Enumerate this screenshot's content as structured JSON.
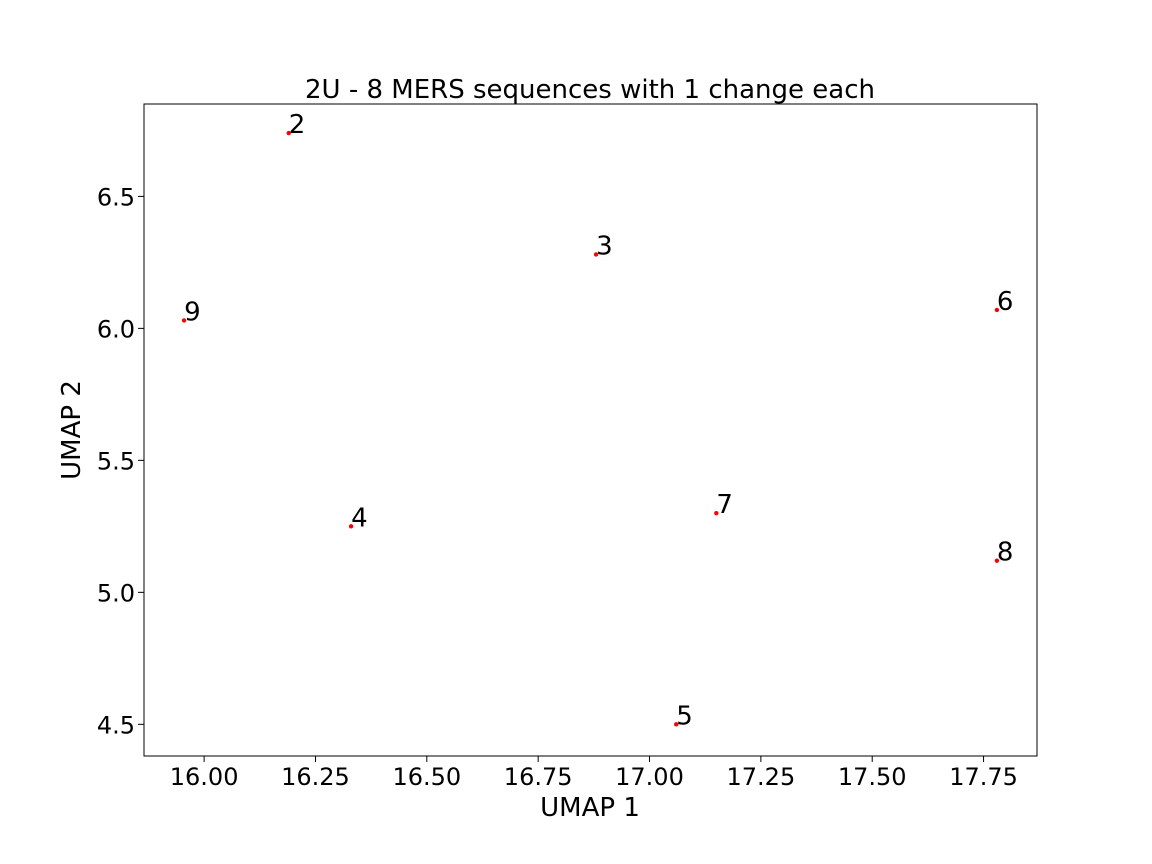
{
  "chart_data": {
    "type": "scatter",
    "title": "2U - 8 MERS sequences with 1 change each",
    "xlabel": "UMAP 1",
    "ylabel": "UMAP 2",
    "xlim": [
      15.865,
      17.87
    ],
    "ylim": [
      4.38,
      6.85
    ],
    "xticks": [
      16.0,
      16.25,
      16.5,
      16.75,
      17.0,
      17.25,
      17.5,
      17.75
    ],
    "xtick_labels": [
      "16.00",
      "16.25",
      "16.50",
      "16.75",
      "17.00",
      "17.25",
      "17.50",
      "17.75"
    ],
    "yticks": [
      4.5,
      5.0,
      5.5,
      6.0,
      6.5
    ],
    "ytick_labels": [
      "4.5",
      "5.0",
      "5.5",
      "6.0",
      "6.5"
    ],
    "grid": false,
    "point_color": "#ff0000",
    "points": [
      {
        "label": "2",
        "x": 16.19,
        "y": 6.74
      },
      {
        "label": "3",
        "x": 16.88,
        "y": 6.28
      },
      {
        "label": "4",
        "x": 16.33,
        "y": 5.25
      },
      {
        "label": "5",
        "x": 17.06,
        "y": 4.5
      },
      {
        "label": "6",
        "x": 17.78,
        "y": 6.07
      },
      {
        "label": "7",
        "x": 17.15,
        "y": 5.3
      },
      {
        "label": "8",
        "x": 17.78,
        "y": 5.12
      },
      {
        "label": "9",
        "x": 15.955,
        "y": 6.03
      }
    ]
  }
}
